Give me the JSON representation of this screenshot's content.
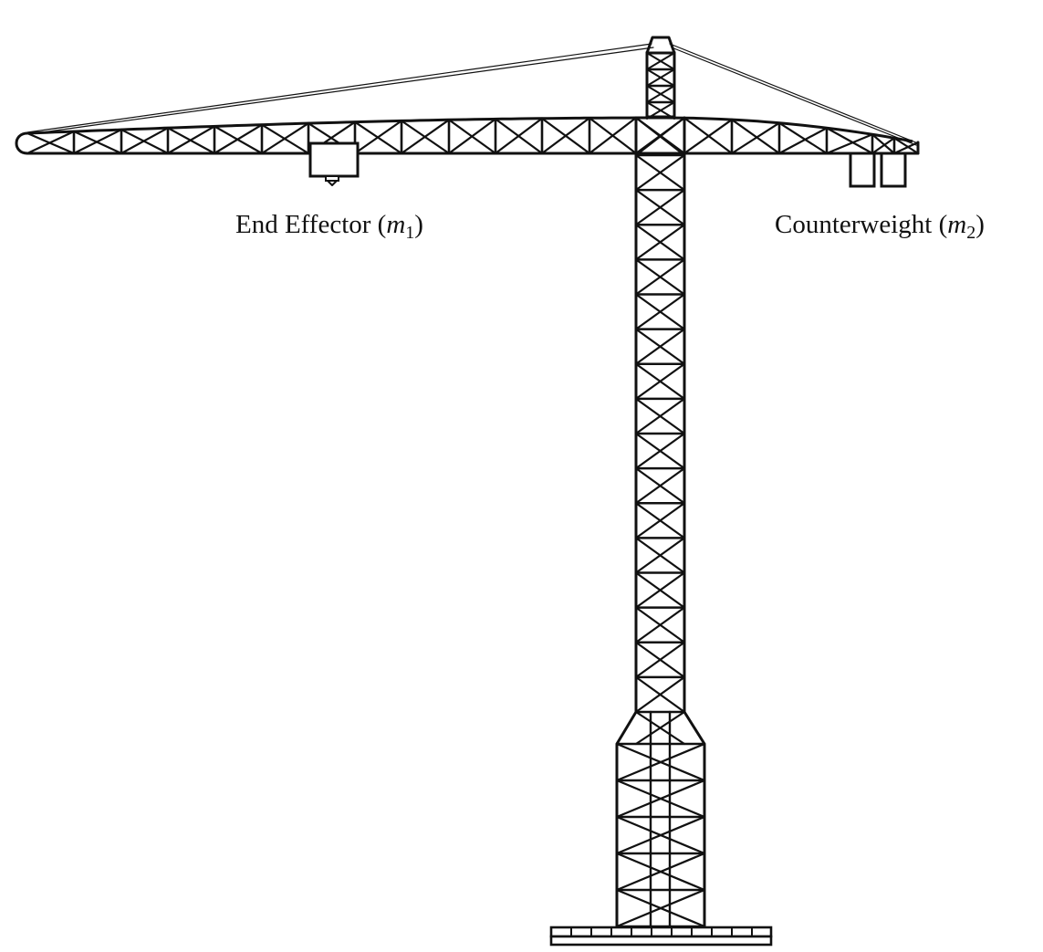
{
  "labels": {
    "end_effector": {
      "text": "End Effector (",
      "var": "m",
      "sub": "1",
      "close": ")"
    },
    "counterweight": {
      "text": "Counterweight (",
      "var": "m",
      "sub": "2",
      "close": ")"
    }
  },
  "colors": {
    "line": "#111111",
    "background": "#ffffff"
  }
}
